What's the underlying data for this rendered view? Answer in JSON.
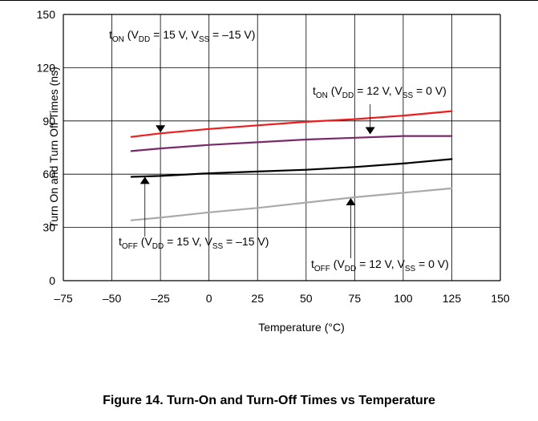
{
  "figure": {
    "caption": "Figure 14. Turn-On and Turn-Off Times vs Temperature"
  },
  "chart_data": {
    "type": "line",
    "title": "",
    "xlabel": "Temperature (°C)",
    "ylabel": "Turn On and Turn Off  Times (ns)",
    "xlim": [
      -75,
      150
    ],
    "ylim": [
      0,
      150
    ],
    "xticks": [
      -75,
      -50,
      -25,
      0,
      25,
      50,
      75,
      100,
      125,
      150
    ],
    "xtick_labels": [
      "–75",
      "–50",
      "–25",
      "0",
      "25",
      "50",
      "75",
      "100",
      "125",
      "150"
    ],
    "yticks": [
      0,
      30,
      60,
      90,
      120,
      150
    ],
    "ytick_labels": [
      "0",
      "30",
      "60",
      "90",
      "120",
      "150"
    ],
    "grid": true,
    "legend": "none",
    "series": [
      {
        "key": "ton_15",
        "color": "#ee1c1c",
        "x": [
          -40,
          -25,
          0,
          25,
          50,
          75,
          100,
          125
        ],
        "y": [
          81,
          83,
          85.5,
          87.5,
          89.5,
          91,
          93,
          95.5
        ]
      },
      {
        "key": "ton_12",
        "color": "#7a2a6a",
        "x": [
          -40,
          -25,
          0,
          25,
          50,
          75,
          100,
          125
        ],
        "y": [
          73,
          74.5,
          76.5,
          78,
          79.5,
          80.5,
          81.5,
          81.5
        ]
      },
      {
        "key": "toff_15",
        "color": "#000000",
        "x": [
          -40,
          -25,
          0,
          25,
          50,
          75,
          100,
          125
        ],
        "y": [
          58.5,
          59,
          60.5,
          61.5,
          62.5,
          64,
          66,
          68.5
        ]
      },
      {
        "key": "toff_12",
        "color": "#aaaaaa",
        "x": [
          -40,
          -25,
          0,
          25,
          50,
          75,
          100,
          125
        ],
        "y": [
          34,
          35.5,
          38.5,
          41,
          44,
          47,
          49.5,
          52
        ]
      }
    ],
    "annotations": [
      {
        "key": "ton_15_label",
        "main": "t",
        "sub": "ON",
        "cond_1": " (V",
        "cond_1_sub": "DD",
        "cond_2": " = 15 V, V",
        "cond_2_sub": "SS",
        "cond_3": " = –15 V)",
        "arrow_x": -25,
        "arrow_y": 83,
        "arrow_dir": "down"
      },
      {
        "key": "ton_12_label",
        "main": "t",
        "sub": "ON",
        "cond_1": " (V",
        "cond_1_sub": "DD",
        "cond_2": " = 12 V, V",
        "cond_2_sub": "SS",
        "cond_3": " = 0 V)",
        "arrow_x": 83,
        "arrow_y": 82,
        "arrow_dir": "down"
      },
      {
        "key": "toff_15_label",
        "main": "t",
        "sub": "OFF",
        "cond_1": " (V",
        "cond_1_sub": "DD",
        "cond_2": " = 15 V, V",
        "cond_2_sub": "SS",
        "cond_3": " = –15 V)",
        "arrow_x": -33,
        "arrow_y": 59,
        "arrow_dir": "up"
      },
      {
        "key": "toff_12_label",
        "main": "t",
        "sub": "OFF",
        "cond_1": " (V",
        "cond_1_sub": "DD",
        "cond_2": " = 12 V, V",
        "cond_2_sub": "SS",
        "cond_3": " = 0 V)",
        "arrow_x": 73,
        "arrow_y": 47,
        "arrow_dir": "up"
      }
    ]
  }
}
